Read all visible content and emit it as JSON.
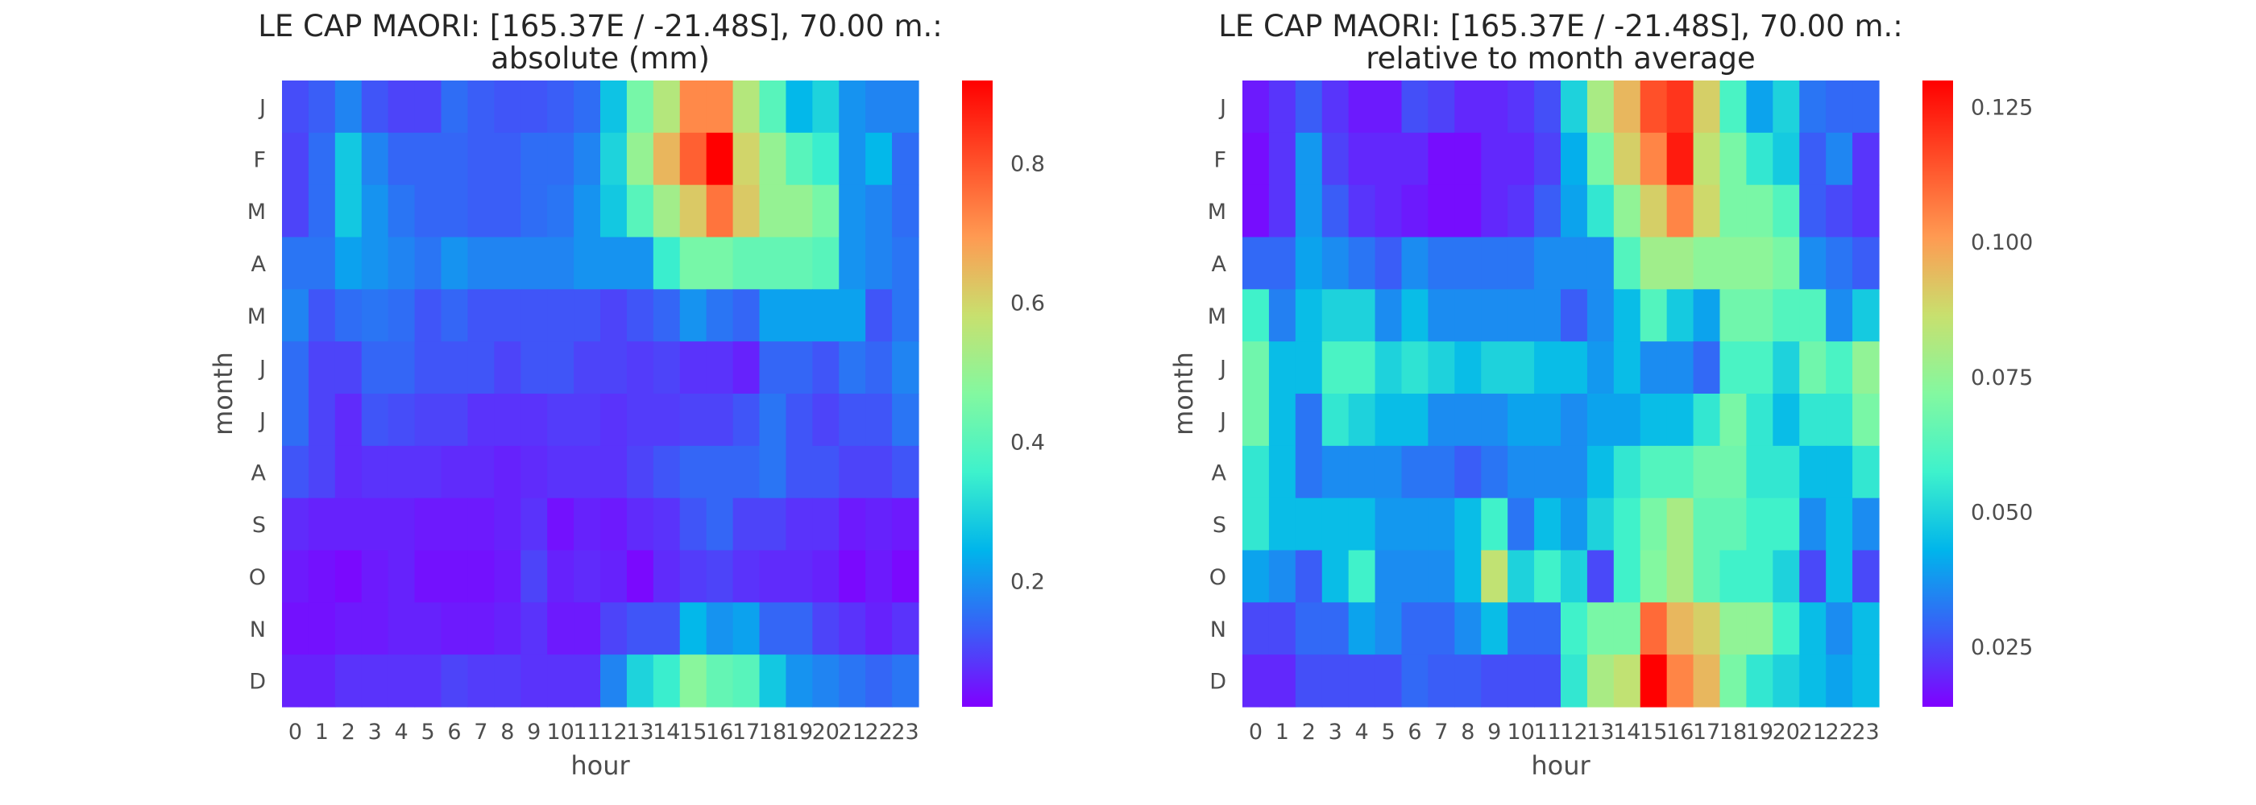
{
  "charts": {
    "colormap": [
      "#8000ff",
      "#3860f7",
      "#00b5eb",
      "#3ef2cc",
      "#83f8a0",
      "#c8e06e",
      "#ff9a52",
      "#ff4d28",
      "#ff0000"
    ],
    "chart_data": [
      {
        "type": "heatmap",
        "title": "LE CAP MAORI: [165.37E / -21.48S], 70.00 m.:",
        "subtitle": "absolute (mm)",
        "xlabel": "hour",
        "ylabel": "month",
        "x": [
          "0",
          "1",
          "2",
          "3",
          "4",
          "5",
          "6",
          "7",
          "8",
          "9",
          "10",
          "11",
          "12",
          "13",
          "14",
          "15",
          "16",
          "17",
          "18",
          "19",
          "20",
          "21",
          "22",
          "23"
        ],
        "y": [
          "J",
          "F",
          "M",
          "A",
          "M",
          "J",
          "J",
          "A",
          "S",
          "O",
          "N",
          "D"
        ],
        "vmin": 0.02,
        "vmax": 0.92,
        "colorbar_ticks": [
          "0.2",
          "0.4",
          "0.6",
          "0.8"
        ],
        "colorbar_tick_values": [
          0.2,
          0.4,
          0.6,
          0.8
        ],
        "values": [
          [
            0.11,
            0.13,
            0.18,
            0.12,
            0.1,
            0.1,
            0.15,
            0.13,
            0.12,
            0.12,
            0.13,
            0.15,
            0.27,
            0.45,
            0.55,
            0.72,
            0.72,
            0.55,
            0.4,
            0.25,
            0.3,
            0.2,
            0.18,
            0.18
          ],
          [
            0.1,
            0.15,
            0.28,
            0.18,
            0.14,
            0.14,
            0.14,
            0.13,
            0.13,
            0.15,
            0.15,
            0.18,
            0.3,
            0.5,
            0.65,
            0.78,
            0.92,
            0.6,
            0.5,
            0.4,
            0.35,
            0.2,
            0.25,
            0.15
          ],
          [
            0.1,
            0.15,
            0.28,
            0.2,
            0.16,
            0.14,
            0.14,
            0.13,
            0.13,
            0.15,
            0.16,
            0.2,
            0.28,
            0.4,
            0.52,
            0.62,
            0.75,
            0.62,
            0.5,
            0.5,
            0.45,
            0.2,
            0.18,
            0.15
          ],
          [
            0.16,
            0.16,
            0.22,
            0.2,
            0.18,
            0.16,
            0.2,
            0.18,
            0.18,
            0.18,
            0.18,
            0.2,
            0.2,
            0.2,
            0.35,
            0.45,
            0.45,
            0.42,
            0.42,
            0.42,
            0.4,
            0.2,
            0.18,
            0.16
          ],
          [
            0.18,
            0.12,
            0.15,
            0.16,
            0.15,
            0.12,
            0.14,
            0.12,
            0.12,
            0.12,
            0.12,
            0.12,
            0.1,
            0.12,
            0.14,
            0.2,
            0.16,
            0.14,
            0.22,
            0.22,
            0.22,
            0.22,
            0.12,
            0.16
          ],
          [
            0.15,
            0.1,
            0.1,
            0.14,
            0.14,
            0.12,
            0.12,
            0.12,
            0.1,
            0.12,
            0.12,
            0.1,
            0.1,
            0.09,
            0.1,
            0.08,
            0.08,
            0.06,
            0.14,
            0.14,
            0.12,
            0.16,
            0.14,
            0.18
          ],
          [
            0.15,
            0.1,
            0.07,
            0.12,
            0.11,
            0.1,
            0.1,
            0.08,
            0.08,
            0.08,
            0.09,
            0.09,
            0.08,
            0.09,
            0.09,
            0.1,
            0.1,
            0.12,
            0.16,
            0.12,
            0.1,
            0.12,
            0.12,
            0.16
          ],
          [
            0.12,
            0.1,
            0.07,
            0.08,
            0.08,
            0.08,
            0.07,
            0.07,
            0.06,
            0.07,
            0.08,
            0.08,
            0.08,
            0.1,
            0.12,
            0.14,
            0.14,
            0.14,
            0.16,
            0.12,
            0.12,
            0.1,
            0.1,
            0.12
          ],
          [
            0.07,
            0.06,
            0.06,
            0.06,
            0.06,
            0.05,
            0.05,
            0.05,
            0.06,
            0.08,
            0.04,
            0.06,
            0.05,
            0.07,
            0.08,
            0.12,
            0.14,
            0.1,
            0.1,
            0.08,
            0.08,
            0.05,
            0.06,
            0.05
          ],
          [
            0.05,
            0.04,
            0.03,
            0.05,
            0.06,
            0.04,
            0.04,
            0.04,
            0.05,
            0.1,
            0.06,
            0.07,
            0.06,
            0.03,
            0.07,
            0.09,
            0.1,
            0.08,
            0.07,
            0.07,
            0.06,
            0.03,
            0.05,
            0.03
          ],
          [
            0.04,
            0.04,
            0.05,
            0.05,
            0.06,
            0.06,
            0.05,
            0.05,
            0.06,
            0.08,
            0.05,
            0.05,
            0.1,
            0.12,
            0.12,
            0.25,
            0.2,
            0.22,
            0.14,
            0.14,
            0.1,
            0.08,
            0.06,
            0.08
          ],
          [
            0.06,
            0.06,
            0.08,
            0.08,
            0.08,
            0.08,
            0.1,
            0.09,
            0.09,
            0.08,
            0.08,
            0.08,
            0.18,
            0.3,
            0.35,
            0.48,
            0.42,
            0.4,
            0.28,
            0.2,
            0.18,
            0.16,
            0.14,
            0.16
          ]
        ]
      },
      {
        "type": "heatmap",
        "title": "LE CAP MAORI: [165.37E / -21.48S], 70.00 m.:",
        "subtitle": "relative to month average",
        "xlabel": "hour",
        "ylabel": "month",
        "x": [
          "0",
          "1",
          "2",
          "3",
          "4",
          "5",
          "6",
          "7",
          "8",
          "9",
          "10",
          "11",
          "12",
          "13",
          "14",
          "15",
          "16",
          "17",
          "18",
          "19",
          "20",
          "21",
          "22",
          "23"
        ],
        "y": [
          "J",
          "F",
          "M",
          "A",
          "M",
          "J",
          "J",
          "A",
          "S",
          "O",
          "N",
          "D"
        ],
        "vmin": 0.014,
        "vmax": 0.13,
        "colorbar_ticks": [
          "0.025",
          "0.050",
          "0.075",
          "0.100",
          "0.125"
        ],
        "colorbar_tick_values": [
          0.025,
          0.05,
          0.075,
          0.1,
          0.125
        ],
        "values": [
          [
            0.018,
            0.022,
            0.028,
            0.022,
            0.018,
            0.018,
            0.026,
            0.024,
            0.02,
            0.02,
            0.022,
            0.026,
            0.05,
            0.08,
            0.095,
            0.115,
            0.12,
            0.09,
            0.06,
            0.04,
            0.05,
            0.032,
            0.03,
            0.03
          ],
          [
            0.016,
            0.022,
            0.038,
            0.024,
            0.02,
            0.02,
            0.02,
            0.016,
            0.016,
            0.02,
            0.02,
            0.024,
            0.042,
            0.07,
            0.09,
            0.105,
            0.125,
            0.085,
            0.07,
            0.055,
            0.048,
            0.028,
            0.035,
            0.022
          ],
          [
            0.016,
            0.022,
            0.038,
            0.028,
            0.022,
            0.02,
            0.018,
            0.016,
            0.016,
            0.02,
            0.022,
            0.028,
            0.04,
            0.055,
            0.075,
            0.09,
            0.105,
            0.088,
            0.07,
            0.07,
            0.062,
            0.028,
            0.025,
            0.022
          ],
          [
            0.03,
            0.03,
            0.04,
            0.036,
            0.032,
            0.028,
            0.036,
            0.032,
            0.032,
            0.032,
            0.032,
            0.036,
            0.036,
            0.036,
            0.062,
            0.078,
            0.078,
            0.074,
            0.074,
            0.074,
            0.07,
            0.036,
            0.032,
            0.028
          ],
          [
            0.058,
            0.034,
            0.045,
            0.05,
            0.05,
            0.036,
            0.045,
            0.036,
            0.036,
            0.036,
            0.036,
            0.036,
            0.028,
            0.036,
            0.045,
            0.062,
            0.048,
            0.04,
            0.068,
            0.068,
            0.062,
            0.062,
            0.036,
            0.048
          ],
          [
            0.068,
            0.045,
            0.045,
            0.06,
            0.06,
            0.05,
            0.054,
            0.05,
            0.045,
            0.05,
            0.05,
            0.045,
            0.045,
            0.038,
            0.045,
            0.036,
            0.036,
            0.03,
            0.06,
            0.06,
            0.05,
            0.068,
            0.06,
            0.075
          ],
          [
            0.068,
            0.045,
            0.032,
            0.055,
            0.05,
            0.045,
            0.045,
            0.036,
            0.036,
            0.036,
            0.04,
            0.04,
            0.036,
            0.04,
            0.04,
            0.045,
            0.045,
            0.055,
            0.07,
            0.055,
            0.045,
            0.055,
            0.055,
            0.07
          ],
          [
            0.055,
            0.045,
            0.032,
            0.036,
            0.036,
            0.036,
            0.032,
            0.032,
            0.028,
            0.032,
            0.036,
            0.036,
            0.036,
            0.045,
            0.055,
            0.062,
            0.062,
            0.068,
            0.068,
            0.055,
            0.055,
            0.045,
            0.045,
            0.055
          ],
          [
            0.055,
            0.045,
            0.045,
            0.045,
            0.045,
            0.038,
            0.038,
            0.038,
            0.045,
            0.058,
            0.032,
            0.045,
            0.038,
            0.05,
            0.058,
            0.07,
            0.08,
            0.065,
            0.065,
            0.058,
            0.058,
            0.036,
            0.045,
            0.036
          ],
          [
            0.04,
            0.036,
            0.028,
            0.045,
            0.058,
            0.036,
            0.036,
            0.036,
            0.045,
            0.085,
            0.05,
            0.058,
            0.05,
            0.025,
            0.058,
            0.072,
            0.08,
            0.065,
            0.058,
            0.058,
            0.05,
            0.025,
            0.045,
            0.025
          ],
          [
            0.025,
            0.025,
            0.03,
            0.03,
            0.04,
            0.036,
            0.03,
            0.03,
            0.036,
            0.045,
            0.03,
            0.03,
            0.058,
            0.07,
            0.07,
            0.11,
            0.095,
            0.09,
            0.075,
            0.075,
            0.058,
            0.045,
            0.036,
            0.045
          ],
          [
            0.02,
            0.02,
            0.026,
            0.026,
            0.026,
            0.026,
            0.03,
            0.028,
            0.028,
            0.026,
            0.026,
            0.026,
            0.055,
            0.08,
            0.085,
            0.13,
            0.105,
            0.095,
            0.07,
            0.055,
            0.05,
            0.045,
            0.04,
            0.045
          ]
        ]
      }
    ]
  }
}
